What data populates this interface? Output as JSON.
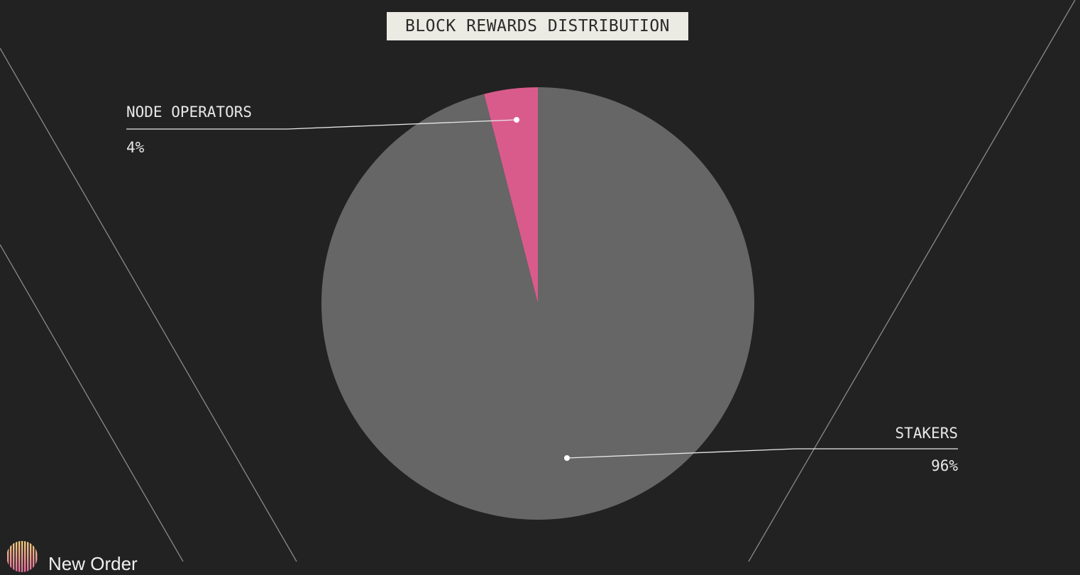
{
  "chart_data": {
    "type": "pie",
    "title": "BLOCK REWARDS DISTRIBUTION",
    "slices": [
      {
        "label": "NODE OPERATORS",
        "value": 4,
        "value_label": "4%",
        "color": "#d95b8c"
      },
      {
        "label": "STAKERS",
        "value": 96,
        "value_label": "96%",
        "color": "#666666"
      }
    ],
    "start": "12 o'clock, counter-clockwise for NODE OPERATORS"
  },
  "brand": {
    "name": "New Order"
  },
  "colors": {
    "background": "#222222",
    "title_bg": "#ecebe3",
    "text": "#e8e8e8"
  }
}
